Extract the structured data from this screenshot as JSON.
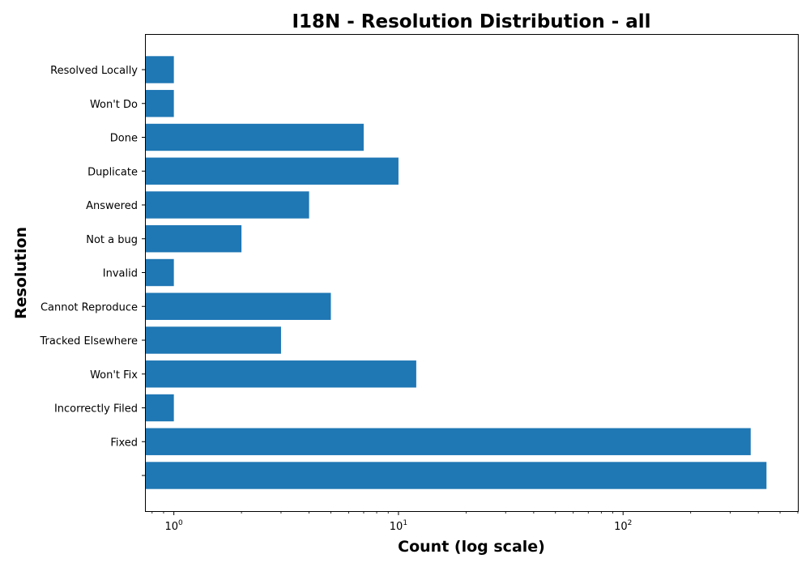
{
  "chart_data": {
    "type": "bar",
    "orientation": "horizontal",
    "title": "I18N - Resolution Distribution - all",
    "xlabel": "Count (log scale)",
    "ylabel": "Resolution",
    "xscale": "log",
    "xlim": [
      0.75,
      600
    ],
    "xticks": [
      {
        "base": "10",
        "exp": "0"
      },
      {
        "base": "10",
        "exp": "1"
      },
      {
        "base": "10",
        "exp": "2"
      }
    ],
    "categories": [
      "Resolved Locally",
      "Won't Do",
      "Done",
      "Duplicate",
      "Answered",
      "Not a bug",
      "Invalid",
      "Cannot Reproduce",
      "Tracked Elsewhere",
      "Won't Fix",
      "Incorrectly Filed",
      "Fixed",
      ""
    ],
    "values": [
      1,
      1,
      7,
      10,
      4,
      2,
      1,
      5,
      3,
      12,
      1,
      370,
      435
    ],
    "bar_color": "#1f77b4",
    "grid": false,
    "legend": "none"
  }
}
